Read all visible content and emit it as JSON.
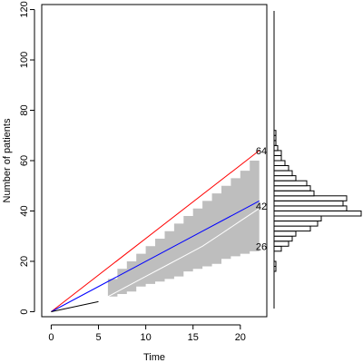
{
  "chart_data": [
    {
      "type": "line",
      "title": "",
      "xlabel": "Time",
      "ylabel": "Number of patients",
      "xlim": [
        -1,
        22.8
      ],
      "ylim": [
        -2,
        122
      ],
      "x_ticks": [
        0,
        5,
        10,
        15,
        20
      ],
      "y_ticks": [
        0,
        20,
        40,
        60,
        80,
        100,
        120
      ],
      "grid": false,
      "legend": "none",
      "observed": {
        "color": "#000000",
        "points": [
          [
            0,
            0
          ],
          [
            5,
            4
          ]
        ]
      },
      "series": [
        {
          "color": "#ff0000",
          "points": [
            [
              0,
              0
            ],
            [
              22,
              64
            ]
          ]
        },
        {
          "color": "#0000ff",
          "points": [
            [
              0,
              0
            ],
            [
              22,
              44
            ]
          ]
        },
        {
          "color": "#ffffff",
          "points": [
            [
              5,
              4
            ],
            [
              8,
              10
            ],
            [
              10,
              14
            ],
            [
              12,
              18
            ],
            [
              14,
              22
            ],
            [
              16,
              26
            ],
            [
              18,
              31
            ],
            [
              20,
              36
            ],
            [
              22,
              41
            ]
          ]
        }
      ],
      "band": {
        "color": "#bebebe",
        "x": [
          5,
          6,
          7,
          8,
          9,
          10,
          11,
          12,
          13,
          14,
          15,
          16,
          17,
          18,
          19,
          20,
          21,
          22
        ],
        "lower": [
          4,
          6,
          7,
          8,
          10,
          11,
          12,
          13,
          14,
          16,
          17,
          18,
          19,
          21,
          22,
          23,
          24,
          26
        ],
        "upper": [
          4,
          13,
          17,
          20,
          23,
          26,
          29,
          32,
          35,
          38,
          41,
          44,
          47,
          50,
          53,
          56,
          60,
          62
        ]
      },
      "end_labels": [
        {
          "text": "64",
          "value": 64
        },
        {
          "text": "42",
          "value": 42
        },
        {
          "text": "26",
          "value": 26
        }
      ]
    },
    {
      "type": "bar",
      "orientation": "horizontal",
      "title": "",
      "ylim": [
        -2,
        122
      ],
      "bin_width": 2,
      "bins": [
        {
          "y0": 16,
          "count": 0.5
        },
        {
          "y0": 18,
          "count": 0.5
        },
        {
          "y0": 24,
          "count": 2
        },
        {
          "y0": 26,
          "count": 4
        },
        {
          "y0": 28,
          "count": 5
        },
        {
          "y0": 30,
          "count": 6
        },
        {
          "y0": 32,
          "count": 10
        },
        {
          "y0": 34,
          "count": 12
        },
        {
          "y0": 36,
          "count": 13
        },
        {
          "y0": 38,
          "count": 24
        },
        {
          "y0": 40,
          "count": 20
        },
        {
          "y0": 42,
          "count": 19
        },
        {
          "y0": 44,
          "count": 20
        },
        {
          "y0": 46,
          "count": 11
        },
        {
          "y0": 48,
          "count": 10
        },
        {
          "y0": 50,
          "count": 9
        },
        {
          "y0": 52,
          "count": 6
        },
        {
          "y0": 54,
          "count": 5
        },
        {
          "y0": 56,
          "count": 4
        },
        {
          "y0": 58,
          "count": 3
        },
        {
          "y0": 60,
          "count": 2
        },
        {
          "y0": 62,
          "count": 2
        },
        {
          "y0": 64,
          "count": 1
        },
        {
          "y0": 66,
          "count": 0.5
        },
        {
          "y0": 68,
          "count": 0.5
        },
        {
          "y0": 70,
          "count": 0.5
        }
      ]
    }
  ]
}
